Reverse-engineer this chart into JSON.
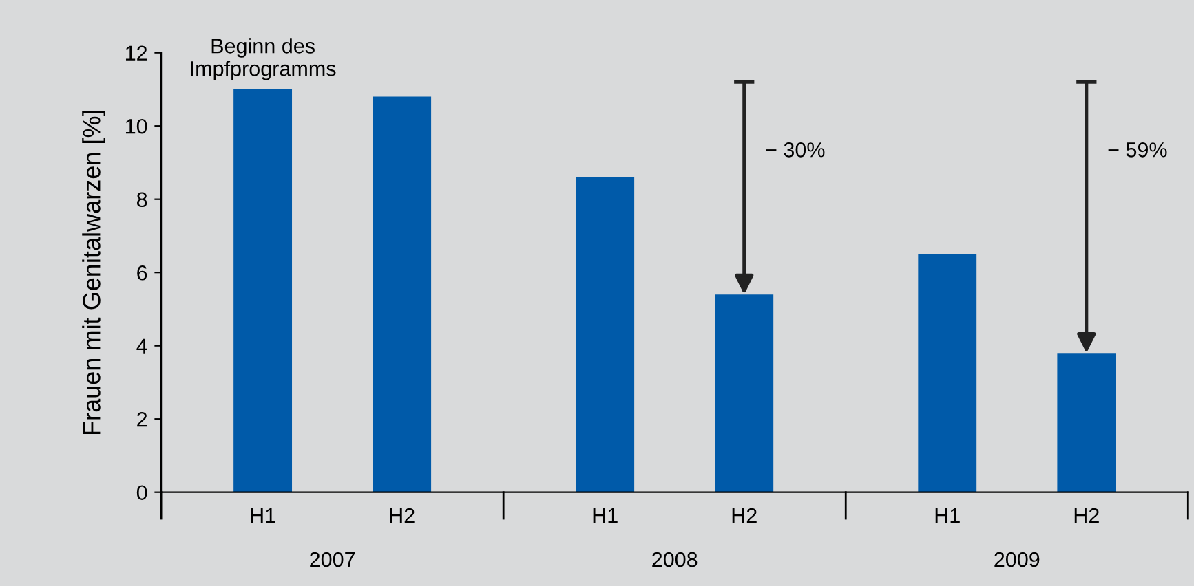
{
  "chart_data": {
    "type": "bar",
    "ylabel": "Frauen mit Genitalwarzen [%]",
    "categories": [
      "H1",
      "H2",
      "H1",
      "H2",
      "H1",
      "H2"
    ],
    "values": [
      11.0,
      10.8,
      8.6,
      5.4,
      6.5,
      3.8
    ],
    "color": "#005aa9",
    "ylim": [
      0,
      12
    ],
    "yticks": [
      0,
      2,
      4,
      6,
      8,
      10,
      12
    ],
    "grid": false,
    "annotations": [
      "Beginn des\nImpfprogramms",
      "− 30%",
      "− 59%",
      "2007",
      "2008",
      "2009"
    ]
  }
}
